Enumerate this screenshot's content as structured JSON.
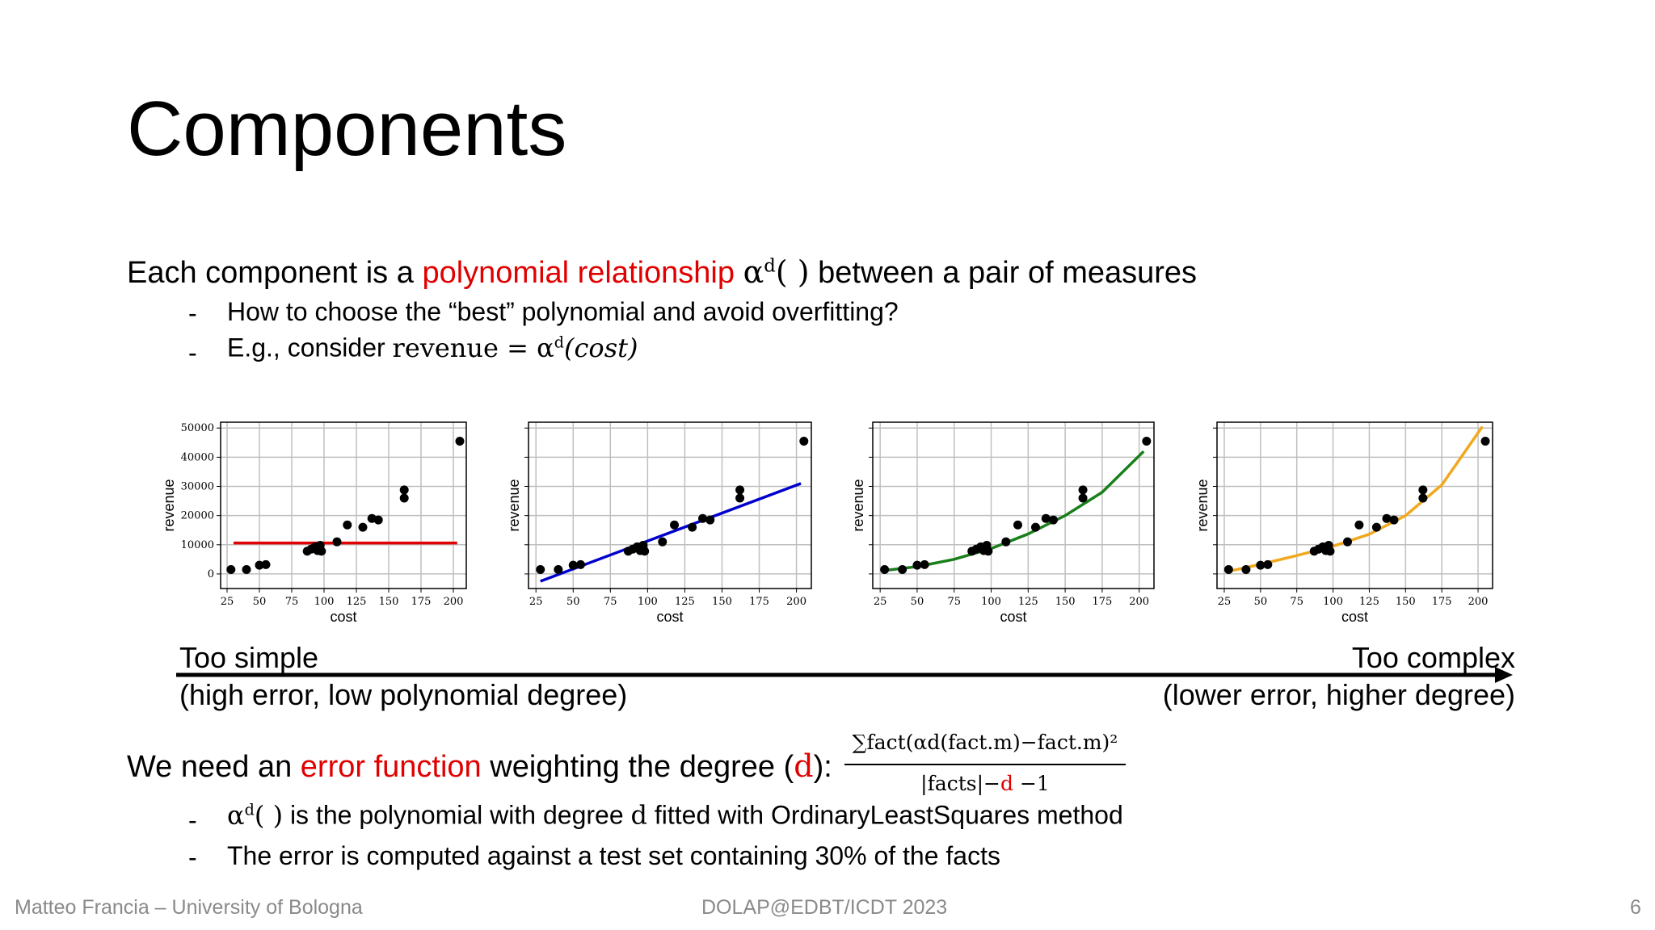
{
  "slide": {
    "title": "Components",
    "intro": {
      "before": "Each component is a ",
      "highlight": "polynomial relationship",
      "math": "α",
      "math_sup": "d",
      "math_args": "( )",
      "after": " between a pair of measures"
    },
    "bullets_top": [
      {
        "dash": "-",
        "text": "How to choose the “best” polynomial and avoid overfitting?"
      },
      {
        "dash": "-",
        "text_before": "E.g., consider ",
        "math_lhs": "revenue = α",
        "math_sup": "d",
        "math_rhs": "(cost)"
      }
    ],
    "arrow": {
      "left_top": "Too simple",
      "left_bottom": "(high error, low polynomial degree)",
      "right_top": "Too complex",
      "right_bottom": "(lower error, higher degree)"
    },
    "error_line": {
      "before": "We need an ",
      "highlight": "error function",
      "middle": " weighting the degree (",
      "var": "d",
      "end": "):",
      "numerator": "∑fact(αd(fact.m)−fact.m)²",
      "denominator_before": "|facts|−",
      "denominator_var": "d",
      "denominator_after": " −1"
    },
    "bullets_bottom": [
      {
        "dash": "-",
        "math": "α",
        "math_sup": "d",
        "math_args": "( )",
        "text_mid": " is the polynomial with degree ",
        "var": "d",
        "text_after": " fitted with OrdinaryLeastSquares method"
      },
      {
        "dash": "-",
        "text": "The error is computed against a test set containing 30% of the facts"
      }
    ],
    "footer": {
      "left": "Matteo Francia – University of Bologna",
      "center": "DOLAP@EDBT/ICDT 2023",
      "page": "6"
    }
  },
  "colors": {
    "highlight": "#e00000",
    "fit_constant": "#e00000",
    "fit_linear": "#0000cc",
    "fit_quadratic": "#1a7f1a",
    "fit_cubic": "#f0a81e"
  },
  "chart_data": [
    {
      "type": "scatter",
      "title": "",
      "xlabel": "cost",
      "ylabel": "revenue",
      "xlim": [
        20,
        210
      ],
      "ylim": [
        -5000,
        52000
      ],
      "xticks": [
        25,
        50,
        75,
        100,
        125,
        150,
        175,
        200
      ],
      "yticks": [
        0,
        10000,
        20000,
        30000,
        40000,
        50000
      ],
      "points": [
        [
          28,
          1500
        ],
        [
          40,
          1500
        ],
        [
          50,
          3000
        ],
        [
          55,
          3200
        ],
        [
          87,
          7800
        ],
        [
          90,
          8500
        ],
        [
          93,
          9300
        ],
        [
          95,
          8000
        ],
        [
          97,
          9800
        ],
        [
          98,
          7800
        ],
        [
          110,
          11000
        ],
        [
          118,
          16800
        ],
        [
          130,
          16000
        ],
        [
          137,
          19000
        ],
        [
          142,
          18500
        ],
        [
          162,
          28800
        ],
        [
          162,
          26000
        ],
        [
          205,
          45500
        ]
      ],
      "fit": {
        "degree": 0,
        "color": "#e00000",
        "x": [
          30,
          203
        ],
        "y": [
          10600,
          10600
        ]
      },
      "show_ytick_labels": true
    },
    {
      "type": "scatter",
      "title": "",
      "xlabel": "cost",
      "ylabel": "revenue",
      "xlim": [
        20,
        210
      ],
      "ylim": [
        -5000,
        52000
      ],
      "xticks": [
        25,
        50,
        75,
        100,
        125,
        150,
        175,
        200
      ],
      "yticks": [
        0,
        10000,
        20000,
        30000,
        40000,
        50000
      ],
      "points": [
        [
          28,
          1500
        ],
        [
          40,
          1500
        ],
        [
          50,
          3000
        ],
        [
          55,
          3200
        ],
        [
          87,
          7800
        ],
        [
          90,
          8500
        ],
        [
          93,
          9300
        ],
        [
          95,
          8000
        ],
        [
          97,
          9800
        ],
        [
          98,
          7800
        ],
        [
          110,
          11000
        ],
        [
          118,
          16800
        ],
        [
          130,
          16000
        ],
        [
          137,
          19000
        ],
        [
          142,
          18500
        ],
        [
          162,
          28800
        ],
        [
          162,
          26000
        ],
        [
          205,
          45500
        ]
      ],
      "fit": {
        "degree": 1,
        "color": "#0000cc",
        "x": [
          28,
          203
        ],
        "y": [
          -2500,
          31000
        ]
      },
      "show_ytick_labels": false
    },
    {
      "type": "scatter",
      "title": "",
      "xlabel": "cost",
      "ylabel": "revenue",
      "xlim": [
        20,
        210
      ],
      "ylim": [
        -5000,
        52000
      ],
      "xticks": [
        25,
        50,
        75,
        100,
        125,
        150,
        175,
        200
      ],
      "yticks": [
        0,
        10000,
        20000,
        30000,
        40000,
        50000
      ],
      "points": [
        [
          28,
          1500
        ],
        [
          40,
          1500
        ],
        [
          50,
          3000
        ],
        [
          55,
          3200
        ],
        [
          87,
          7800
        ],
        [
          90,
          8500
        ],
        [
          93,
          9300
        ],
        [
          95,
          8000
        ],
        [
          97,
          9800
        ],
        [
          98,
          7800
        ],
        [
          110,
          11000
        ],
        [
          118,
          16800
        ],
        [
          130,
          16000
        ],
        [
          137,
          19000
        ],
        [
          142,
          18500
        ],
        [
          162,
          28800
        ],
        [
          162,
          26000
        ],
        [
          205,
          45500
        ]
      ],
      "fit": {
        "degree": 2,
        "color": "#1a7f1a",
        "x": [
          28,
          50,
          75,
          100,
          125,
          150,
          175,
          203
        ],
        "y": [
          1200,
          2500,
          5000,
          8700,
          13700,
          20000,
          28000,
          42000
        ]
      },
      "show_ytick_labels": false
    },
    {
      "type": "scatter",
      "title": "",
      "xlabel": "cost",
      "ylabel": "revenue",
      "xlim": [
        20,
        210
      ],
      "ylim": [
        -5000,
        52000
      ],
      "xticks": [
        25,
        50,
        75,
        100,
        125,
        150,
        175,
        200
      ],
      "yticks": [
        0,
        10000,
        20000,
        30000,
        40000,
        50000
      ],
      "points": [
        [
          28,
          1500
        ],
        [
          40,
          1500
        ],
        [
          50,
          3000
        ],
        [
          55,
          3200
        ],
        [
          87,
          7800
        ],
        [
          90,
          8500
        ],
        [
          93,
          9300
        ],
        [
          95,
          8000
        ],
        [
          97,
          9800
        ],
        [
          98,
          7800
        ],
        [
          110,
          11000
        ],
        [
          118,
          16800
        ],
        [
          130,
          16000
        ],
        [
          137,
          19000
        ],
        [
          142,
          18500
        ],
        [
          162,
          28800
        ],
        [
          162,
          26000
        ],
        [
          205,
          45500
        ]
      ],
      "fit": {
        "degree": 3,
        "color": "#f0a81e",
        "x": [
          28,
          50,
          75,
          100,
          125,
          150,
          175,
          203
        ],
        "y": [
          900,
          3300,
          6300,
          9500,
          13600,
          20000,
          30500,
          50500
        ]
      },
      "show_ytick_labels": false
    }
  ]
}
